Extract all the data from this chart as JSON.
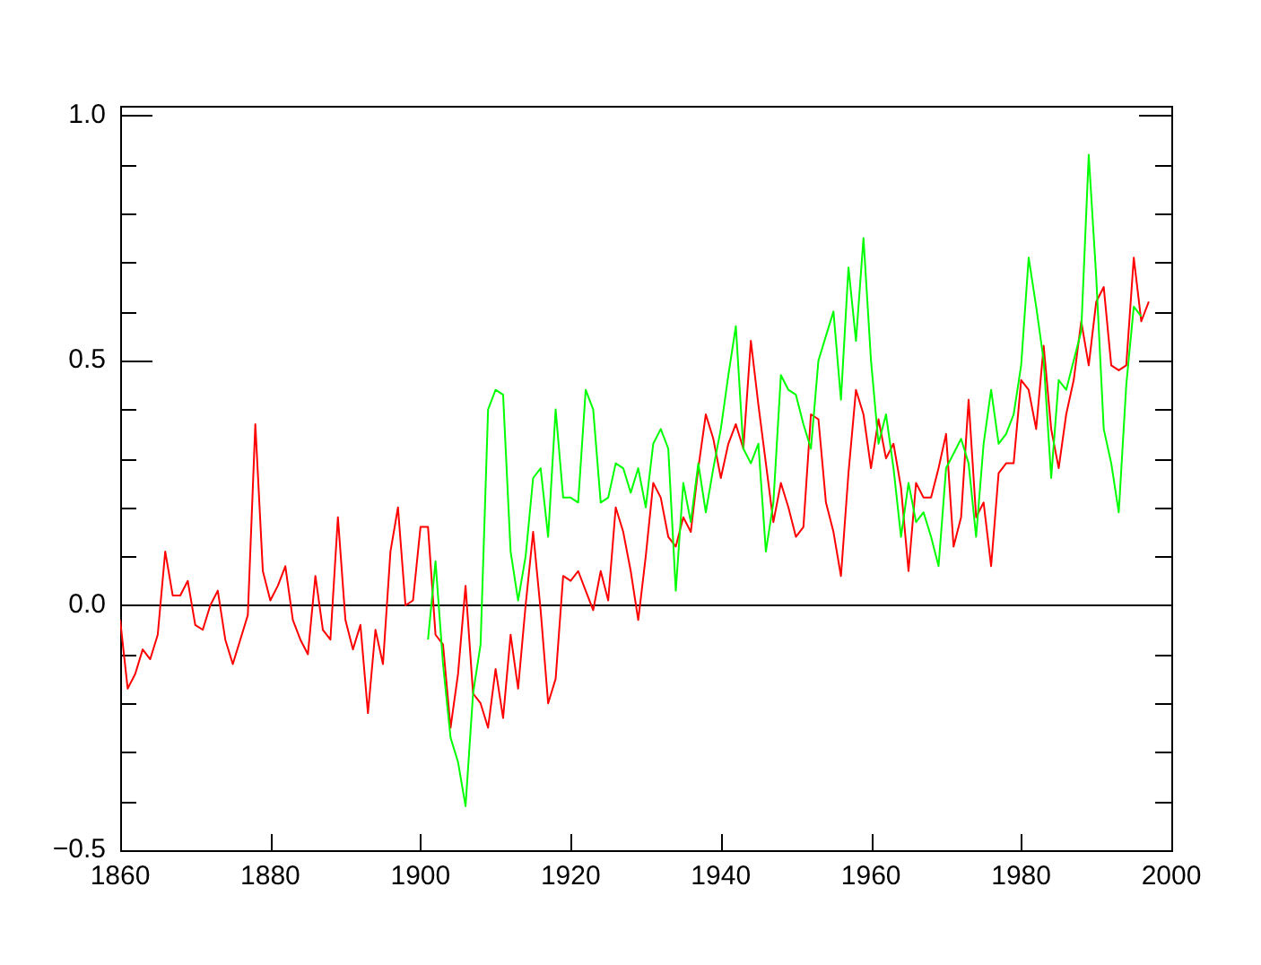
{
  "chart_data": {
    "type": "line",
    "xlim": [
      1860,
      2000
    ],
    "ylim": [
      -0.5,
      1.02
    ],
    "xticks": [
      1860,
      1880,
      1900,
      1920,
      1940,
      1960,
      1980,
      2000
    ],
    "yticks": [
      {
        "value": -0.5,
        "label": "−0.5"
      },
      {
        "value": -0.4,
        "label": null
      },
      {
        "value": -0.3,
        "label": null
      },
      {
        "value": -0.2,
        "label": null
      },
      {
        "value": -0.1,
        "label": null
      },
      {
        "value": 0,
        "label": "0.0"
      },
      {
        "value": 0.1,
        "label": null
      },
      {
        "value": 0.2,
        "label": null
      },
      {
        "value": 0.3,
        "label": null
      },
      {
        "value": 0.4,
        "label": null
      },
      {
        "value": 0.5,
        "label": "0.5"
      },
      {
        "value": 0.6,
        "label": null
      },
      {
        "value": 0.7,
        "label": null
      },
      {
        "value": 0.8,
        "label": null
      },
      {
        "value": 0.9,
        "label": null
      },
      {
        "value": 1.0,
        "label": "1.0"
      }
    ],
    "grid": false,
    "legend": false,
    "marker": "none",
    "line_style": "solid",
    "ref_lines": [
      {
        "axis": "y",
        "value": 0,
        "color": "#000000"
      }
    ],
    "series": [
      {
        "color": "#00ff00",
        "x": [
          1901,
          1902,
          1903,
          1904,
          1905,
          1906,
          1907,
          1908,
          1909,
          1910,
          1911,
          1912,
          1913,
          1914,
          1915,
          1916,
          1917,
          1918,
          1919,
          1920,
          1921,
          1922,
          1923,
          1924,
          1925,
          1926,
          1927,
          1928,
          1929,
          1930,
          1931,
          1932,
          1933,
          1934,
          1935,
          1936,
          1937,
          1938,
          1939,
          1940,
          1941,
          1942,
          1943,
          1944,
          1945,
          1946,
          1947,
          1948,
          1949,
          1950,
          1951,
          1952,
          1953,
          1954,
          1955,
          1956,
          1957,
          1958,
          1959,
          1960,
          1961,
          1962,
          1963,
          1964,
          1965,
          1966,
          1967,
          1968,
          1969,
          1970,
          1971,
          1972,
          1973,
          1974,
          1975,
          1976,
          1977,
          1978,
          1979,
          1980,
          1981,
          1982,
          1983,
          1984,
          1985,
          1986,
          1987,
          1988,
          1989,
          1990,
          1991,
          1992,
          1993,
          1994,
          1995,
          1996
        ],
        "values": [
          -0.07,
          0.09,
          -0.12,
          -0.27,
          -0.32,
          -0.41,
          -0.18,
          -0.08,
          0.4,
          0.44,
          0.43,
          0.11,
          0.01,
          0.1,
          0.26,
          0.28,
          0.14,
          0.4,
          0.22,
          0.22,
          0.21,
          0.44,
          0.4,
          0.21,
          0.22,
          0.29,
          0.28,
          0.23,
          0.28,
          0.2,
          0.33,
          0.36,
          0.32,
          0.03,
          0.25,
          0.17,
          0.29,
          0.19,
          0.28,
          0.36,
          0.47,
          0.57,
          0.32,
          0.29,
          0.33,
          0.11,
          0.21,
          0.47,
          0.44,
          0.43,
          0.37,
          0.32,
          0.5,
          0.55,
          0.6,
          0.42,
          0.69,
          0.54,
          0.75,
          0.5,
          0.33,
          0.39,
          0.28,
          0.14,
          0.25,
          0.17,
          0.19,
          0.14,
          0.08,
          0.28,
          0.31,
          0.34,
          0.29,
          0.14,
          0.33,
          0.44,
          0.33,
          0.35,
          0.39,
          0.49,
          0.71,
          0.61,
          0.5,
          0.26,
          0.46,
          0.44,
          0.5,
          0.56,
          0.92,
          0.67,
          0.36,
          0.29,
          0.19,
          0.45,
          0.61,
          0.59
        ]
      },
      {
        "color": "#ff0000",
        "x": [
          1860,
          1861,
          1862,
          1863,
          1864,
          1865,
          1866,
          1867,
          1868,
          1869,
          1870,
          1871,
          1872,
          1873,
          1874,
          1875,
          1876,
          1877,
          1878,
          1879,
          1880,
          1881,
          1882,
          1883,
          1884,
          1885,
          1886,
          1887,
          1888,
          1889,
          1890,
          1891,
          1892,
          1893,
          1894,
          1895,
          1896,
          1897,
          1898,
          1899,
          1900,
          1901,
          1902,
          1903,
          1904,
          1905,
          1906,
          1907,
          1908,
          1909,
          1910,
          1911,
          1912,
          1913,
          1914,
          1915,
          1916,
          1917,
          1918,
          1919,
          1920,
          1921,
          1922,
          1923,
          1924,
          1925,
          1926,
          1927,
          1928,
          1929,
          1930,
          1931,
          1932,
          1933,
          1934,
          1935,
          1936,
          1937,
          1938,
          1939,
          1940,
          1941,
          1942,
          1943,
          1944,
          1945,
          1946,
          1947,
          1948,
          1949,
          1950,
          1951,
          1952,
          1953,
          1954,
          1955,
          1956,
          1957,
          1958,
          1959,
          1960,
          1961,
          1962,
          1963,
          1964,
          1965,
          1966,
          1967,
          1968,
          1969,
          1970,
          1971,
          1972,
          1973,
          1974,
          1975,
          1976,
          1977,
          1978,
          1979,
          1980,
          1981,
          1982,
          1983,
          1984,
          1985,
          1986,
          1987,
          1988,
          1989,
          1990,
          1991,
          1992,
          1993,
          1994,
          1995,
          1996,
          1997
        ],
        "values": [
          -0.03,
          -0.17,
          -0.14,
          -0.09,
          -0.11,
          -0.06,
          0.11,
          0.02,
          0.02,
          0.05,
          -0.04,
          -0.05,
          0.0,
          0.03,
          -0.07,
          -0.12,
          -0.07,
          -0.02,
          0.37,
          0.07,
          0.01,
          0.04,
          0.08,
          -0.03,
          -0.07,
          -0.1,
          0.06,
          -0.05,
          -0.07,
          0.18,
          -0.03,
          -0.09,
          -0.04,
          -0.22,
          -0.05,
          -0.12,
          0.11,
          0.2,
          0.0,
          0.01,
          0.16,
          0.16,
          -0.06,
          -0.08,
          -0.25,
          -0.14,
          0.04,
          -0.18,
          -0.2,
          -0.25,
          -0.13,
          -0.23,
          -0.06,
          -0.17,
          0.0,
          0.15,
          -0.01,
          -0.2,
          -0.15,
          0.06,
          0.05,
          0.07,
          0.03,
          -0.01,
          0.07,
          0.01,
          0.2,
          0.15,
          0.07,
          -0.03,
          0.1,
          0.25,
          0.22,
          0.14,
          0.12,
          0.18,
          0.15,
          0.28,
          0.39,
          0.34,
          0.26,
          0.33,
          0.37,
          0.32,
          0.54,
          0.41,
          0.29,
          0.17,
          0.25,
          0.2,
          0.14,
          0.16,
          0.39,
          0.38,
          0.21,
          0.15,
          0.06,
          0.27,
          0.44,
          0.39,
          0.28,
          0.38,
          0.3,
          0.33,
          0.24,
          0.07,
          0.25,
          0.22,
          0.22,
          0.28,
          0.35,
          0.12,
          0.18,
          0.42,
          0.18,
          0.21,
          0.08,
          0.27,
          0.29,
          0.29,
          0.46,
          0.44,
          0.36,
          0.53,
          0.36,
          0.28,
          0.39,
          0.46,
          0.58,
          0.49,
          0.62,
          0.65,
          0.49,
          0.48,
          0.49,
          0.71,
          0.58,
          0.62
        ]
      }
    ]
  }
}
